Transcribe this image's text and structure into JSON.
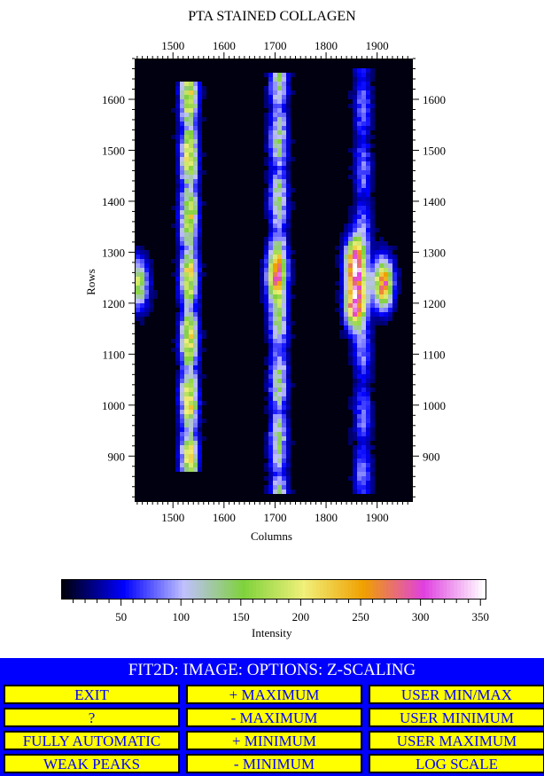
{
  "plot": {
    "title": "PTA STAINED COLLAGEN",
    "xlabel": "Columns",
    "ylabel": "Rows",
    "x_ticks": [
      "1500",
      "1600",
      "1700",
      "1800",
      "1900"
    ],
    "y_ticks": [
      "1600",
      "1500",
      "1400",
      "1300",
      "1200",
      "1100",
      "1000",
      "900"
    ]
  },
  "chart_data": {
    "type": "heatmap",
    "title": "PTA STAINED COLLAGEN",
    "xlabel": "Columns",
    "ylabel": "Rows",
    "xlim": [
      1425,
      1970
    ],
    "ylim": [
      810,
      1680
    ],
    "x_ticks": [
      1500,
      1600,
      1700,
      1800,
      1900
    ],
    "y_ticks": [
      900,
      1000,
      1100,
      1200,
      1300,
      1400,
      1500,
      1600
    ],
    "colorbar": {
      "label": "Intensity",
      "range": [
        0,
        355
      ],
      "ticks": [
        50,
        100,
        150,
        200,
        250,
        300,
        350
      ],
      "colors": [
        "#000010",
        "#0000ff",
        "#c0c0ff",
        "#7fd23c",
        "#f0f07a",
        "#f0a000",
        "#e040e0",
        "#ffffff"
      ]
    },
    "features": [
      {
        "type": "vertical-band",
        "center_column": 1530,
        "row_range": [
          870,
          1640
        ],
        "peak_intensity": 300
      },
      {
        "type": "vertical-band",
        "center_column": 1705,
        "row_range": [
          830,
          1650
        ],
        "peak_intensity": 200
      },
      {
        "type": "vertical-band",
        "center_column": 1870,
        "row_range": [
          830,
          1660
        ],
        "peak_intensity": 110
      },
      {
        "type": "spot",
        "column": 1855,
        "row": 1280,
        "peak_intensity": 310
      },
      {
        "type": "spot",
        "column": 1855,
        "row": 1200,
        "peak_intensity": 300
      },
      {
        "type": "spot",
        "column": 1910,
        "row": 1240,
        "peak_intensity": 290
      },
      {
        "type": "spot",
        "column": 1700,
        "row": 1250,
        "peak_intensity": 200
      },
      {
        "type": "spot",
        "column": 1430,
        "row": 1240,
        "peak_intensity": 180
      }
    ]
  },
  "colorbar": {
    "label": "Intensity",
    "ticks": [
      "50",
      "100",
      "150",
      "200",
      "250",
      "300",
      "350"
    ]
  },
  "menu": {
    "title": "FIT2D: IMAGE: OPTIONS: Z-SCALING",
    "buttons": [
      "EXIT",
      "+ MAXIMUM",
      "USER MIN/MAX",
      "?",
      "- MAXIMUM",
      "USER MINIMUM",
      "FULLY AUTOMATIC",
      "+ MINIMUM",
      "USER MAXIMUM",
      "WEAK PEAKS",
      "- MINIMUM",
      "LOG SCALE"
    ]
  },
  "colors": {
    "menu_background": "#0000ff",
    "button_background": "#ffff00",
    "button_text": "#0000ff",
    "image_background": "#000010"
  }
}
